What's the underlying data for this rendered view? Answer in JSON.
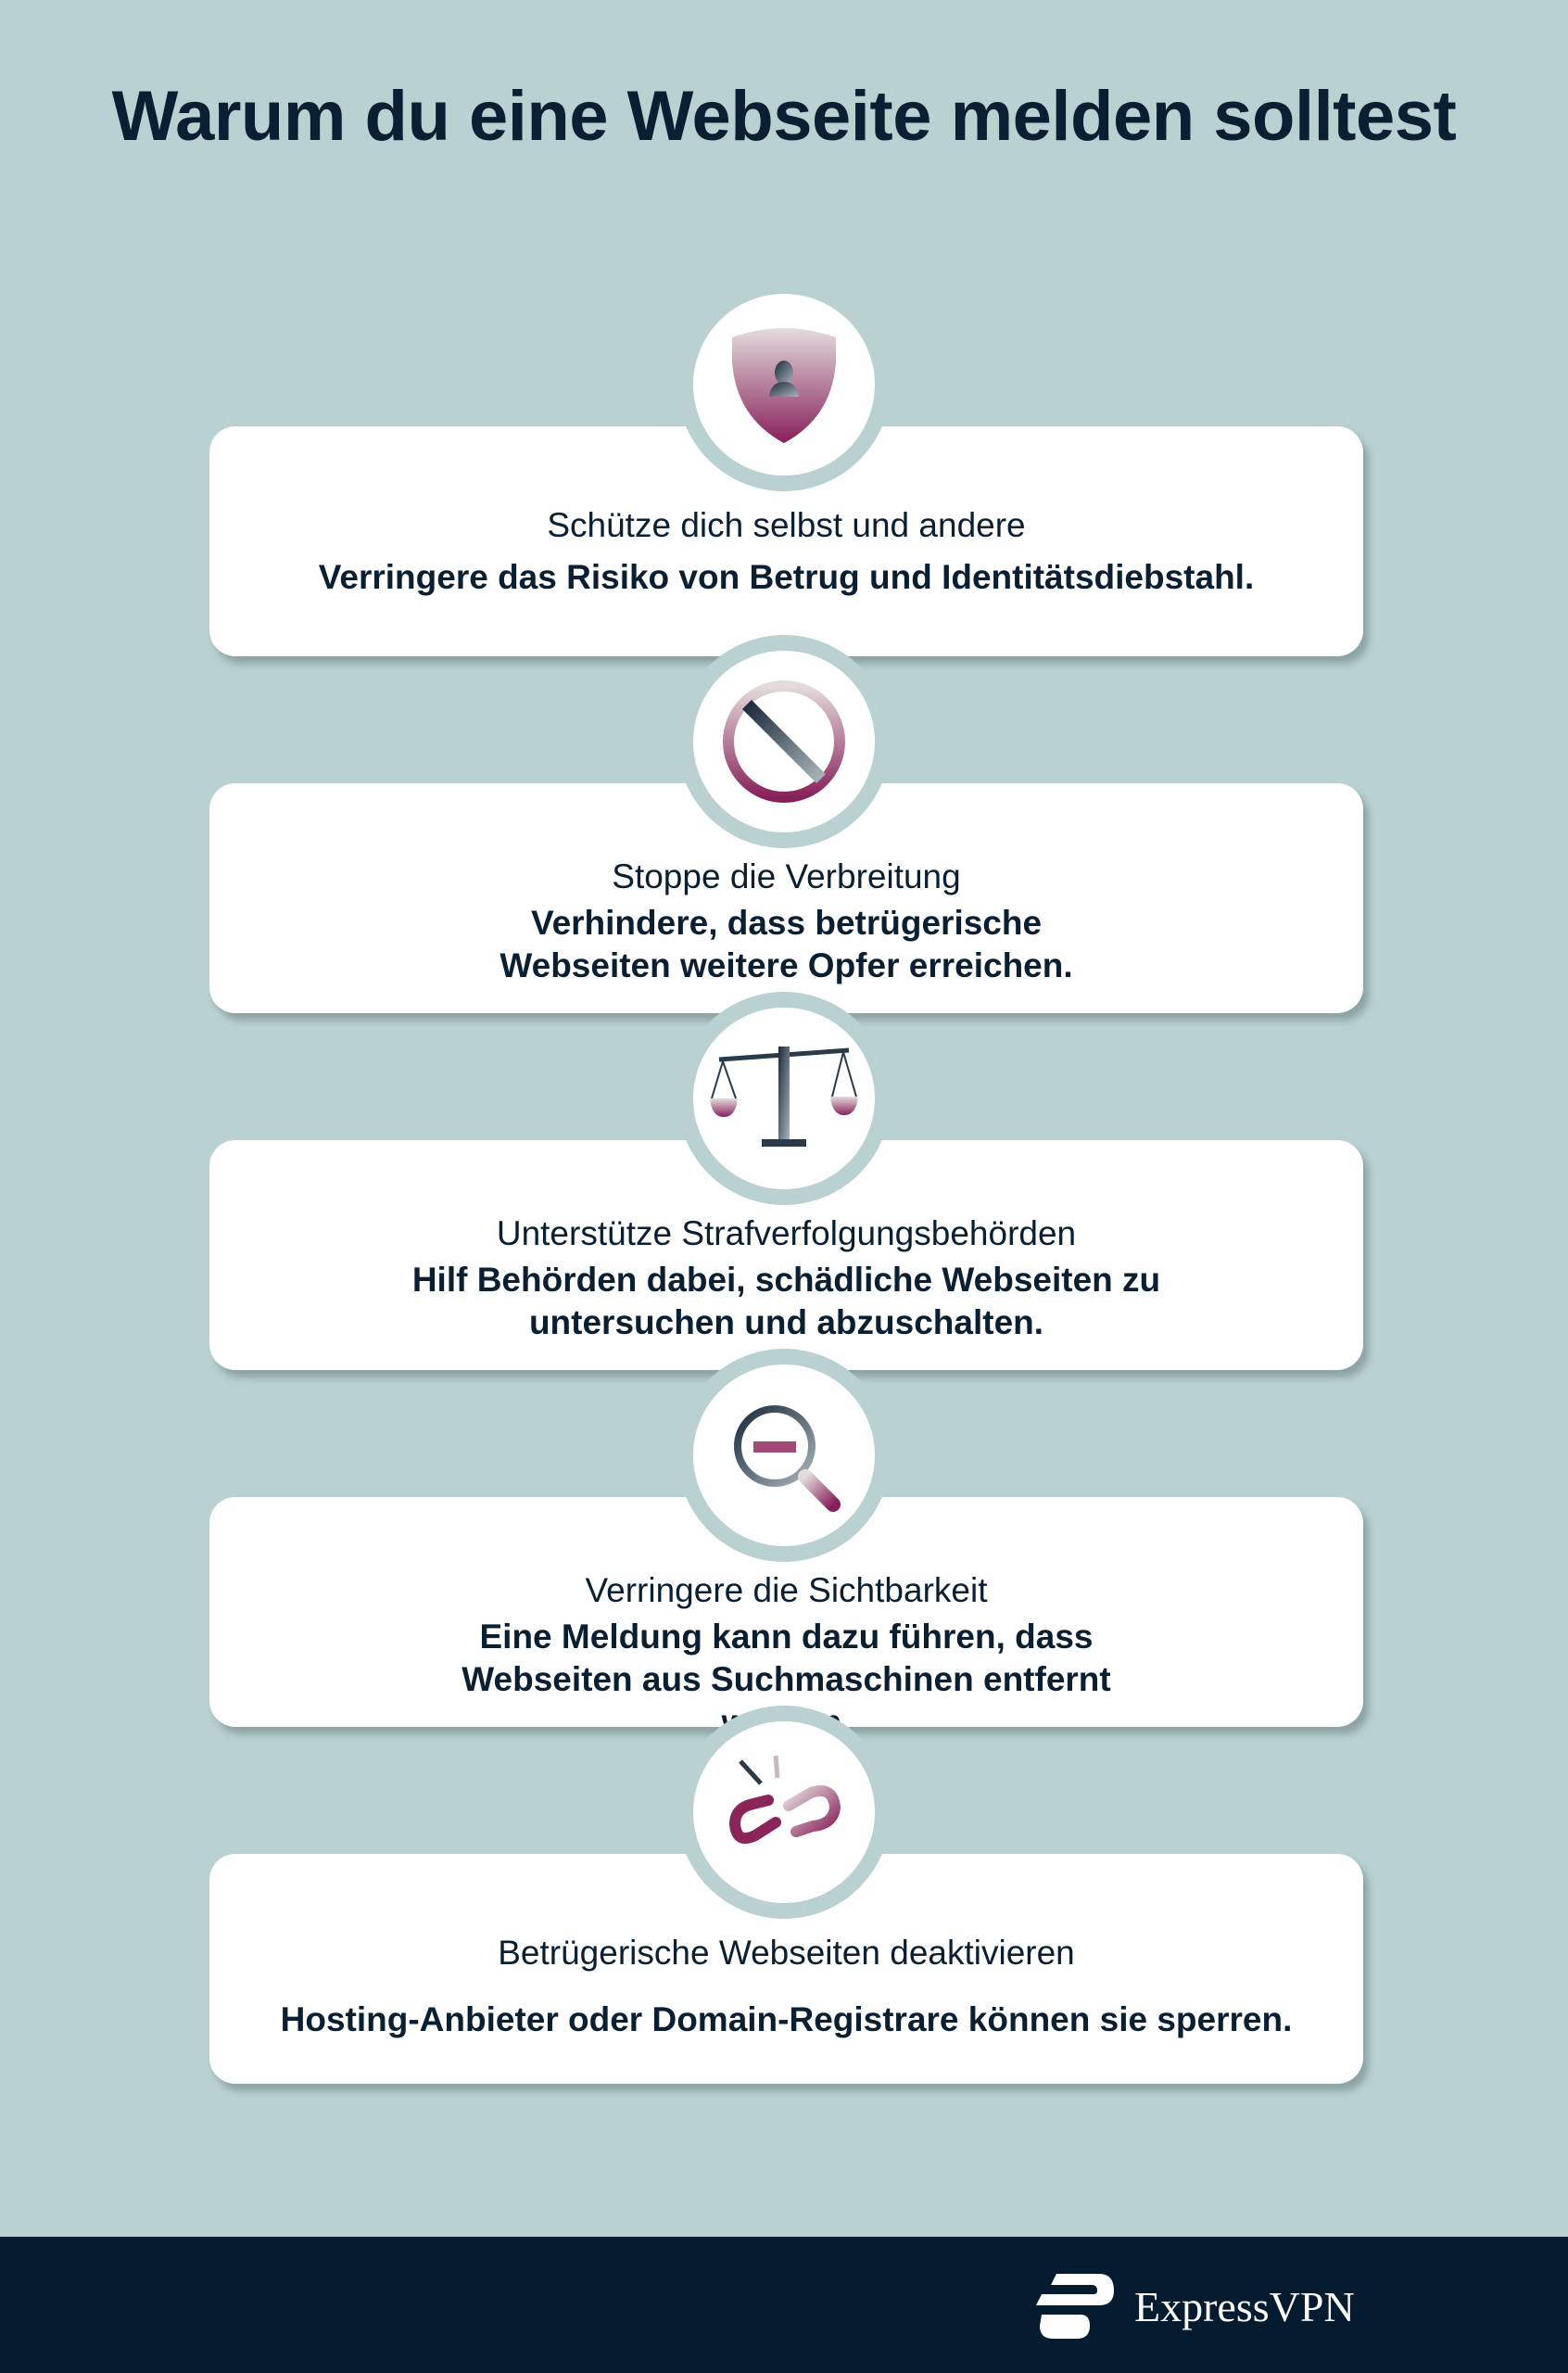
{
  "title": "Warum du eine Webseite melden solltest",
  "cards": [
    {
      "icon": "shield-user-icon",
      "heading": "Schütze dich selbst und andere",
      "text": "Verringere das Risiko von Betrug und Identitätsdiebstahl."
    },
    {
      "icon": "prohibited-icon",
      "heading": "Stoppe die Verbreitung",
      "text": "Verhindere, dass betrügerische Webseiten weitere Opfer erreichen."
    },
    {
      "icon": "scales-icon",
      "heading": "Unterstütze Strafverfolgungsbehörden",
      "text": "Hilf Behörden dabei, schädliche Webseiten zu untersuchen und abzuschalten."
    },
    {
      "icon": "magnifier-minus-icon",
      "heading": "Verringere die Sichtbarkeit",
      "text": "Eine Meldung kann dazu führen, dass Webseiten aus Suchmaschinen entfernt werden."
    },
    {
      "icon": "broken-link-icon",
      "heading": "Betrügerische Webseiten deaktivieren",
      "text": "Hosting-Anbieter oder Domain-Registrare können sie sperren."
    }
  ],
  "footer": {
    "brand": "ExpressVPN"
  },
  "colors": {
    "background": "#b9d1d1",
    "footer": "#041b30",
    "accent": "#8a2459",
    "text": "#0b1f33"
  }
}
